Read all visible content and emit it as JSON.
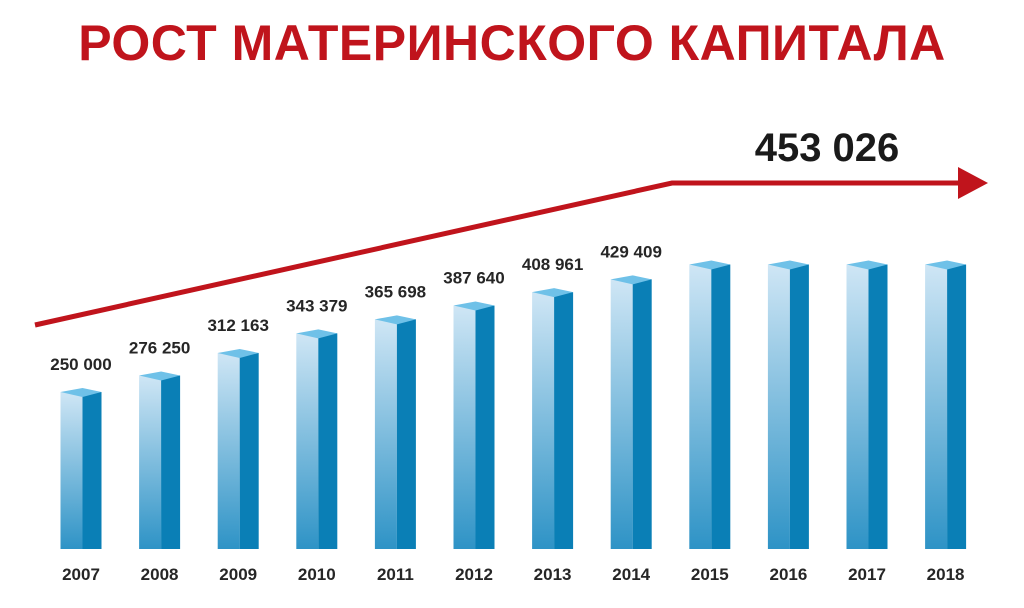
{
  "colors": {
    "title": "#c0141c",
    "arrow": "#c0141c",
    "bar_front_top": "#cfe6f5",
    "bar_front_bottom": "#2e93c6",
    "bar_side": "#0a7fb6",
    "bar_top_face": "#6fc1e8",
    "text": "#262626"
  },
  "chart_data": {
    "type": "bar",
    "title": "РОСТ МАТЕРИНСКОГО КАПИТАЛА",
    "annotation": "453 026",
    "trend_arrow": true,
    "grid": false,
    "legend": "none",
    "categories": [
      "2007",
      "2008",
      "2009",
      "2010",
      "2011",
      "2012",
      "2013",
      "2014",
      "2015",
      "2016",
      "2017",
      "2018"
    ],
    "values": [
      250000,
      276250,
      312163,
      343379,
      365698,
      387640,
      408961,
      429409,
      453026,
      453026,
      453026,
      453026
    ],
    "data_labels": [
      "250 000",
      "276 250",
      "312 163",
      "343 379",
      "365 698",
      "387 640",
      "408 961",
      "429 409",
      "",
      "",
      "",
      ""
    ],
    "ylim": [
      0,
      500000
    ]
  }
}
